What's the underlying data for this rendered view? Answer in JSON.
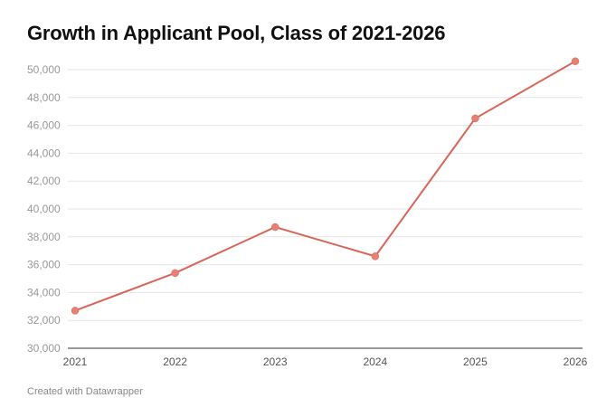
{
  "title": "Growth in Applicant Pool, Class of 2021-2026",
  "credit": "Created with Datawrapper",
  "colors": {
    "line": "#d9665a",
    "point": "#e77f73"
  },
  "chart_data": {
    "type": "line",
    "title": "Growth in Applicant Pool, Class of 2021-2026",
    "xlabel": "",
    "ylabel": "",
    "x": [
      "2021",
      "2022",
      "2023",
      "2024",
      "2025",
      "2026"
    ],
    "series": [
      {
        "values": [
          32700,
          35400,
          38700,
          36600,
          46500,
          50600
        ]
      }
    ],
    "ylim": [
      30000,
      50000
    ],
    "yticks": [
      30000,
      32000,
      34000,
      36000,
      38000,
      40000,
      42000,
      44000,
      46000,
      48000,
      50000
    ],
    "ytick_labels": [
      "30,000",
      "32,000",
      "34,000",
      "36,000",
      "38,000",
      "40,000",
      "42,000",
      "44,000",
      "46,000",
      "48,000",
      "50,000"
    ],
    "grid": true,
    "legend": "none"
  }
}
